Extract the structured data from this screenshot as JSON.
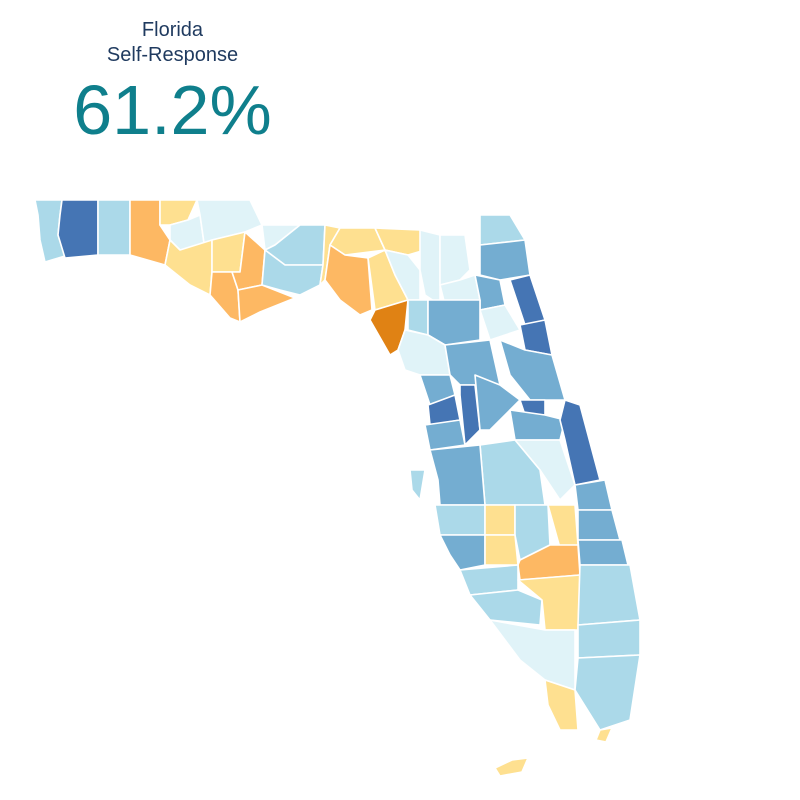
{
  "header": {
    "state": "Florida",
    "metric": "Self-Response",
    "value": "61.2%"
  },
  "palette": {
    "dark_blue": "#4575b4",
    "mid_blue": "#74add1",
    "light_blue": "#abd9e9",
    "pale_blue": "#e0f3f8",
    "pale_yellow": "#fee090",
    "light_orange": "#fdb863",
    "dark_orange": "#e08214"
  }
}
